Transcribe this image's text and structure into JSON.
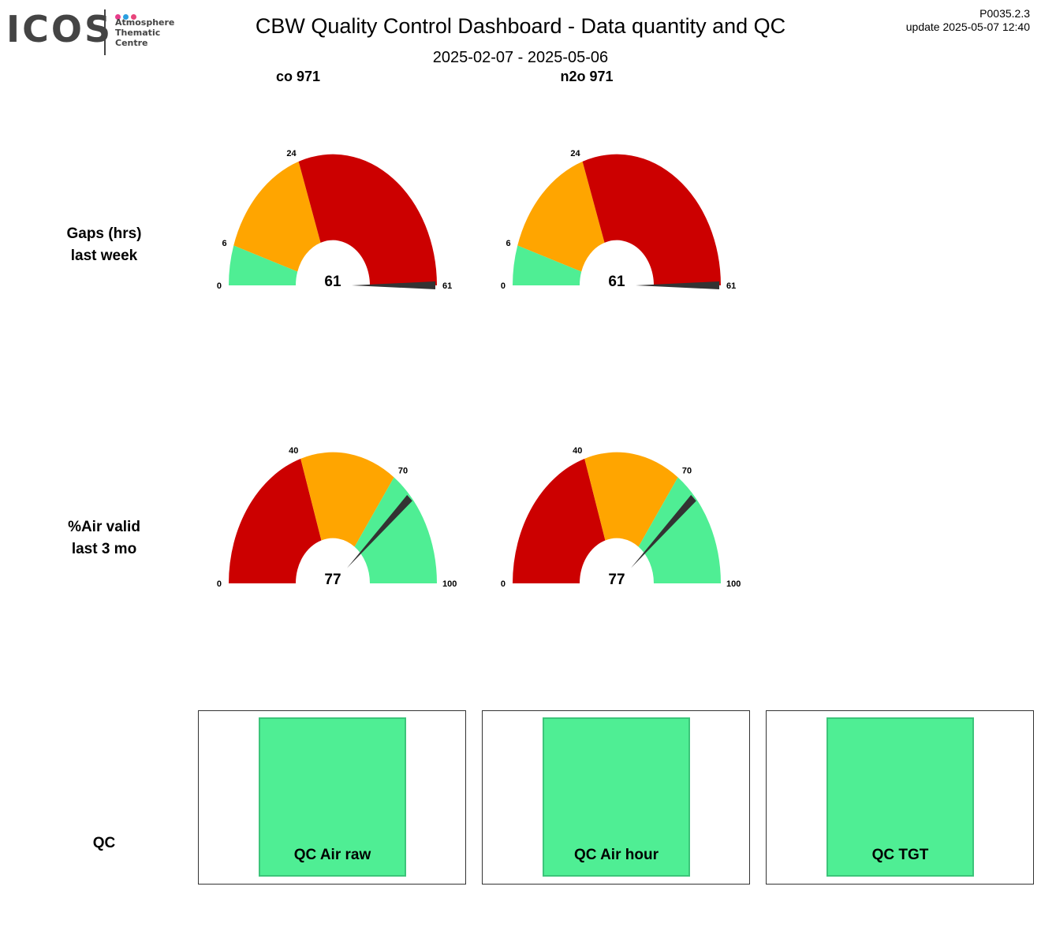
{
  "header": {
    "logo_text": "ICOS",
    "logo_sub": [
      "Atmosphere",
      "Thematic",
      "Centre"
    ],
    "logo_dot_colors": [
      "#e83e8c",
      "#2b9fe0",
      "#e8457b"
    ],
    "title": "CBW  Quality Control Dashboard - Data quantity and QC",
    "date_range": "2025-02-07 - 2025-05-06",
    "version": "P0035.2.3",
    "update": "update  2025-05-07 12:40"
  },
  "columns": [
    "co 971",
    "n2o 971"
  ],
  "rows": {
    "gaps": [
      "Gaps (hrs)",
      "last week"
    ],
    "air": [
      "%Air valid",
      "last 3 mo"
    ],
    "qc": "QC"
  },
  "colors": {
    "green": "#4fee94",
    "orange": "#ffa500",
    "red": "#cc0000",
    "needle": "#333333"
  },
  "chart_data": [
    {
      "type": "gauge",
      "column": "co 971",
      "metric": "Gaps (hrs) last week",
      "min": 0,
      "max": 61,
      "value": 61,
      "bands": [
        {
          "from": 0,
          "to": 6,
          "color": "green"
        },
        {
          "from": 6,
          "to": 24,
          "color": "orange"
        },
        {
          "from": 24,
          "to": 61,
          "color": "red"
        }
      ],
      "tick_labels": [
        "0",
        "6",
        "24",
        "61"
      ],
      "value_label": "61"
    },
    {
      "type": "gauge",
      "column": "n2o 971",
      "metric": "Gaps (hrs) last week",
      "min": 0,
      "max": 61,
      "value": 61,
      "bands": [
        {
          "from": 0,
          "to": 6,
          "color": "green"
        },
        {
          "from": 6,
          "to": 24,
          "color": "orange"
        },
        {
          "from": 24,
          "to": 61,
          "color": "red"
        }
      ],
      "tick_labels": [
        "0",
        "6",
        "24",
        "61"
      ],
      "value_label": "61"
    },
    {
      "type": "gauge",
      "column": "co 971",
      "metric": "%Air valid last 3 mo",
      "min": 0,
      "max": 100,
      "value": 77,
      "bands": [
        {
          "from": 0,
          "to": 40,
          "color": "red"
        },
        {
          "from": 40,
          "to": 70,
          "color": "orange"
        },
        {
          "from": 70,
          "to": 100,
          "color": "green"
        }
      ],
      "tick_labels": [
        "0",
        "40",
        "70",
        "100"
      ],
      "value_label": "77"
    },
    {
      "type": "gauge",
      "column": "n2o 971",
      "metric": "%Air valid last 3 mo",
      "min": 0,
      "max": 100,
      "value": 77,
      "bands": [
        {
          "from": 0,
          "to": 40,
          "color": "red"
        },
        {
          "from": 40,
          "to": 70,
          "color": "orange"
        },
        {
          "from": 70,
          "to": 100,
          "color": "green"
        }
      ],
      "tick_labels": [
        "0",
        "40",
        "70",
        "100"
      ],
      "value_label": "77"
    }
  ],
  "qc_status": [
    {
      "label": "QC Air raw",
      "status_color": "green"
    },
    {
      "label": "QC Air hour",
      "status_color": "green"
    },
    {
      "label": "QC TGT",
      "status_color": "green"
    }
  ]
}
